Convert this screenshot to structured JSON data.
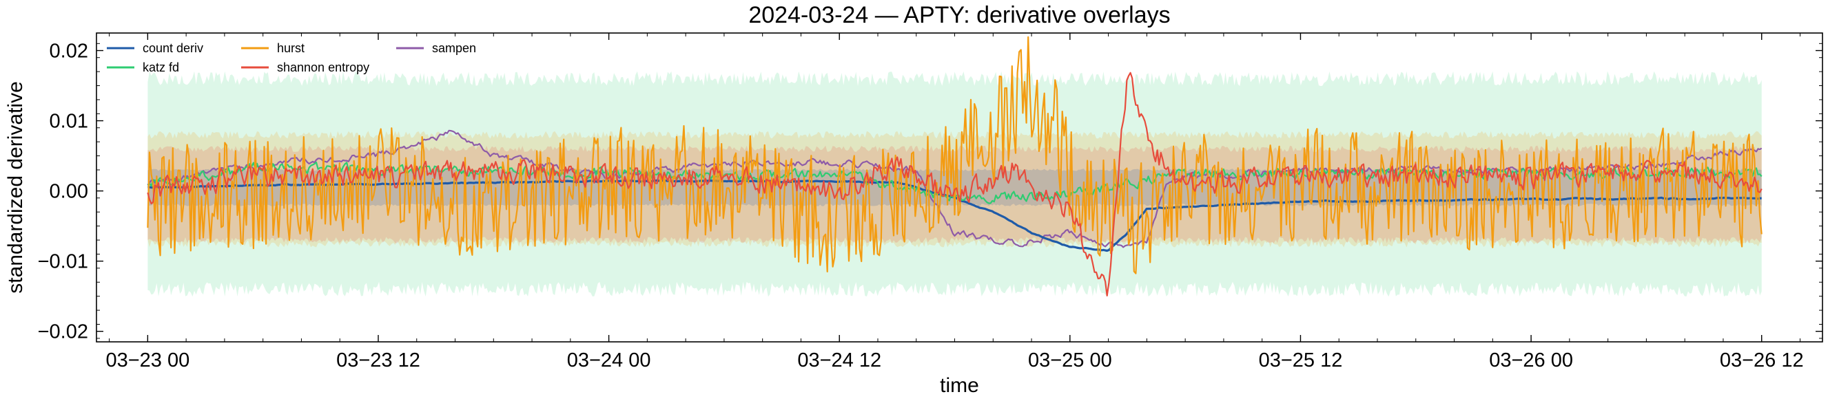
{
  "chart_data": {
    "type": "line",
    "title": "2024-03-24 — APTY: derivative overlays",
    "xlabel": "time",
    "ylabel": "standardized derivative",
    "xlim": [
      "2024-03-22 21:20",
      "2024-03-26 15:10"
    ],
    "ylim": [
      -0.0215,
      0.0225
    ],
    "x_ticks": [
      "03−23 00",
      "03−23 12",
      "03−24 00",
      "03−24 12",
      "03−25 00",
      "03−25 12",
      "03−26 00",
      "03−26 12"
    ],
    "x_tick_dates": [
      "2024-03-23 00:00",
      "2024-03-23 12:00",
      "2024-03-24 00:00",
      "2024-03-24 12:00",
      "2024-03-25 00:00",
      "2024-03-25 12:00",
      "2024-03-26 00:00",
      "2024-03-26 12:00"
    ],
    "y_ticks": [
      -0.02,
      -0.01,
      0.0,
      0.01,
      0.02
    ],
    "y_tick_labels": [
      "−0.02",
      "−0.01",
      "0.00",
      "0.01",
      "0.02"
    ],
    "grid": false,
    "legend_position": "top-left",
    "series_start": "2024-03-23 00:00",
    "series_end": "2024-03-26 12:00",
    "bands": [
      {
        "series": "katz fd",
        "color": "#2ecc71",
        "lower": -0.014,
        "upper": 0.016
      },
      {
        "series": "hurst",
        "color": "#f39c12",
        "lower": -0.0075,
        "upper": 0.008
      },
      {
        "series": "shannon entropy",
        "color": "#e74c3c",
        "lower": -0.007,
        "upper": 0.006
      },
      {
        "series": "count deriv",
        "color": "#1f5ba8",
        "lower": -0.002,
        "upper": 0.003
      }
    ],
    "series": [
      {
        "name": "count deriv",
        "color": "#1f5ba8",
        "keypoints": [
          [
            "2024-03-23 00:00",
            0.0005
          ],
          [
            "2024-03-23 06:00",
            0.0008
          ],
          [
            "2024-03-23 12:00",
            0.001
          ],
          [
            "2024-03-23 18:00",
            0.0012
          ],
          [
            "2024-03-24 00:00",
            0.0014
          ],
          [
            "2024-03-24 06:00",
            0.0014
          ],
          [
            "2024-03-24 12:00",
            0.0013
          ],
          [
            "2024-03-24 15:00",
            0.0012
          ],
          [
            "2024-03-24 18:00",
            -0.001
          ],
          [
            "2024-03-24 20:00",
            -0.003
          ],
          [
            "2024-03-24 22:00",
            -0.006
          ],
          [
            "2024-03-25 00:00",
            -0.008
          ],
          [
            "2024-03-25 02:00",
            -0.0085
          ],
          [
            "2024-03-25 03:00",
            -0.006
          ],
          [
            "2024-03-25 04:00",
            -0.0025
          ],
          [
            "2024-03-25 12:00",
            -0.0015
          ],
          [
            "2024-03-26 00:00",
            -0.0012
          ],
          [
            "2024-03-26 12:00",
            -0.001
          ]
        ]
      },
      {
        "name": "katz fd",
        "color": "#2ecc71",
        "keypoints": [
          [
            "2024-03-23 00:00",
            0.001
          ],
          [
            "2024-03-23 06:00",
            0.0035
          ],
          [
            "2024-03-23 12:00",
            0.003
          ],
          [
            "2024-03-23 18:00",
            0.003
          ],
          [
            "2024-03-24 00:00",
            0.0025
          ],
          [
            "2024-03-24 06:00",
            0.002
          ],
          [
            "2024-03-24 12:00",
            0.0025
          ],
          [
            "2024-03-24 16:00",
            0.0
          ],
          [
            "2024-03-24 18:00",
            -0.001
          ],
          [
            "2024-03-25 00:00",
            -0.0005
          ],
          [
            "2024-03-25 06:00",
            0.0025
          ],
          [
            "2024-03-25 12:00",
            0.0025
          ],
          [
            "2024-03-26 00:00",
            0.0025
          ],
          [
            "2024-03-26 12:00",
            0.0025
          ]
        ]
      },
      {
        "name": "hurst",
        "color": "#f39c12",
        "keypoints": [
          [
            "2024-03-23 00:00",
            -0.002
          ],
          [
            "2024-03-23 06:00",
            0.0
          ],
          [
            "2024-03-23 12:00",
            0.002
          ],
          [
            "2024-03-23 18:00",
            -0.003
          ],
          [
            "2024-03-24 00:00",
            0.001
          ],
          [
            "2024-03-24 06:00",
            0.001
          ],
          [
            "2024-03-24 12:00",
            -0.004
          ],
          [
            "2024-03-24 16:00",
            0.0
          ],
          [
            "2024-03-24 20:00",
            0.008
          ],
          [
            "2024-03-24 22:00",
            0.015
          ],
          [
            "2024-03-25 00:00",
            0.003
          ],
          [
            "2024-03-25 03:00",
            -0.005
          ],
          [
            "2024-03-25 06:00",
            0.0
          ],
          [
            "2024-03-25 12:00",
            0.001
          ],
          [
            "2024-03-26 00:00",
            -0.001
          ],
          [
            "2024-03-26 06:00",
            0.001
          ],
          [
            "2024-03-26 12:00",
            0.0
          ]
        ]
      },
      {
        "name": "shannon entropy",
        "color": "#e74c3c",
        "keypoints": [
          [
            "2024-03-23 00:00",
            0.0
          ],
          [
            "2024-03-23 06:00",
            0.002
          ],
          [
            "2024-03-23 12:00",
            0.002
          ],
          [
            "2024-03-23 18:00",
            0.003
          ],
          [
            "2024-03-24 00:00",
            0.002
          ],
          [
            "2024-03-24 06:00",
            0.002
          ],
          [
            "2024-03-24 12:00",
            0.0
          ],
          [
            "2024-03-24 15:00",
            0.004
          ],
          [
            "2024-03-24 18:00",
            -0.001
          ],
          [
            "2024-03-24 21:00",
            0.003
          ],
          [
            "2024-03-25 00:00",
            -0.003
          ],
          [
            "2024-03-25 02:00",
            -0.014
          ],
          [
            "2024-03-25 03:00",
            0.017
          ],
          [
            "2024-03-25 04:30",
            0.005
          ],
          [
            "2024-03-25 06:00",
            0.001
          ],
          [
            "2024-03-25 12:00",
            0.002
          ],
          [
            "2024-03-26 00:00",
            0.002
          ],
          [
            "2024-03-26 06:00",
            0.003
          ],
          [
            "2024-03-26 12:00",
            0.001
          ]
        ]
      },
      {
        "name": "sampen",
        "color": "#8e5ba8",
        "keypoints": [
          [
            "2024-03-23 00:00",
            0.001
          ],
          [
            "2024-03-23 06:00",
            0.004
          ],
          [
            "2024-03-23 12:00",
            0.005
          ],
          [
            "2024-03-23 16:00",
            0.0085
          ],
          [
            "2024-03-23 18:00",
            0.005
          ],
          [
            "2024-03-24 00:00",
            0.002
          ],
          [
            "2024-03-24 06:00",
            0.004
          ],
          [
            "2024-03-24 12:00",
            0.004
          ],
          [
            "2024-03-24 16:00",
            0.003
          ],
          [
            "2024-03-24 17:00",
            -0.002
          ],
          [
            "2024-03-24 18:00",
            -0.006
          ],
          [
            "2024-03-24 21:00",
            -0.0075
          ],
          [
            "2024-03-25 00:00",
            -0.006
          ],
          [
            "2024-03-25 02:00",
            -0.0075
          ],
          [
            "2024-03-25 04:00",
            -0.0075
          ],
          [
            "2024-03-25 05:00",
            0.001
          ],
          [
            "2024-03-25 06:00",
            0.002
          ],
          [
            "2024-03-25 12:00",
            0.003
          ],
          [
            "2024-03-26 00:00",
            0.003
          ],
          [
            "2024-03-26 06:00",
            0.0035
          ],
          [
            "2024-03-26 12:00",
            0.006
          ]
        ]
      }
    ]
  }
}
